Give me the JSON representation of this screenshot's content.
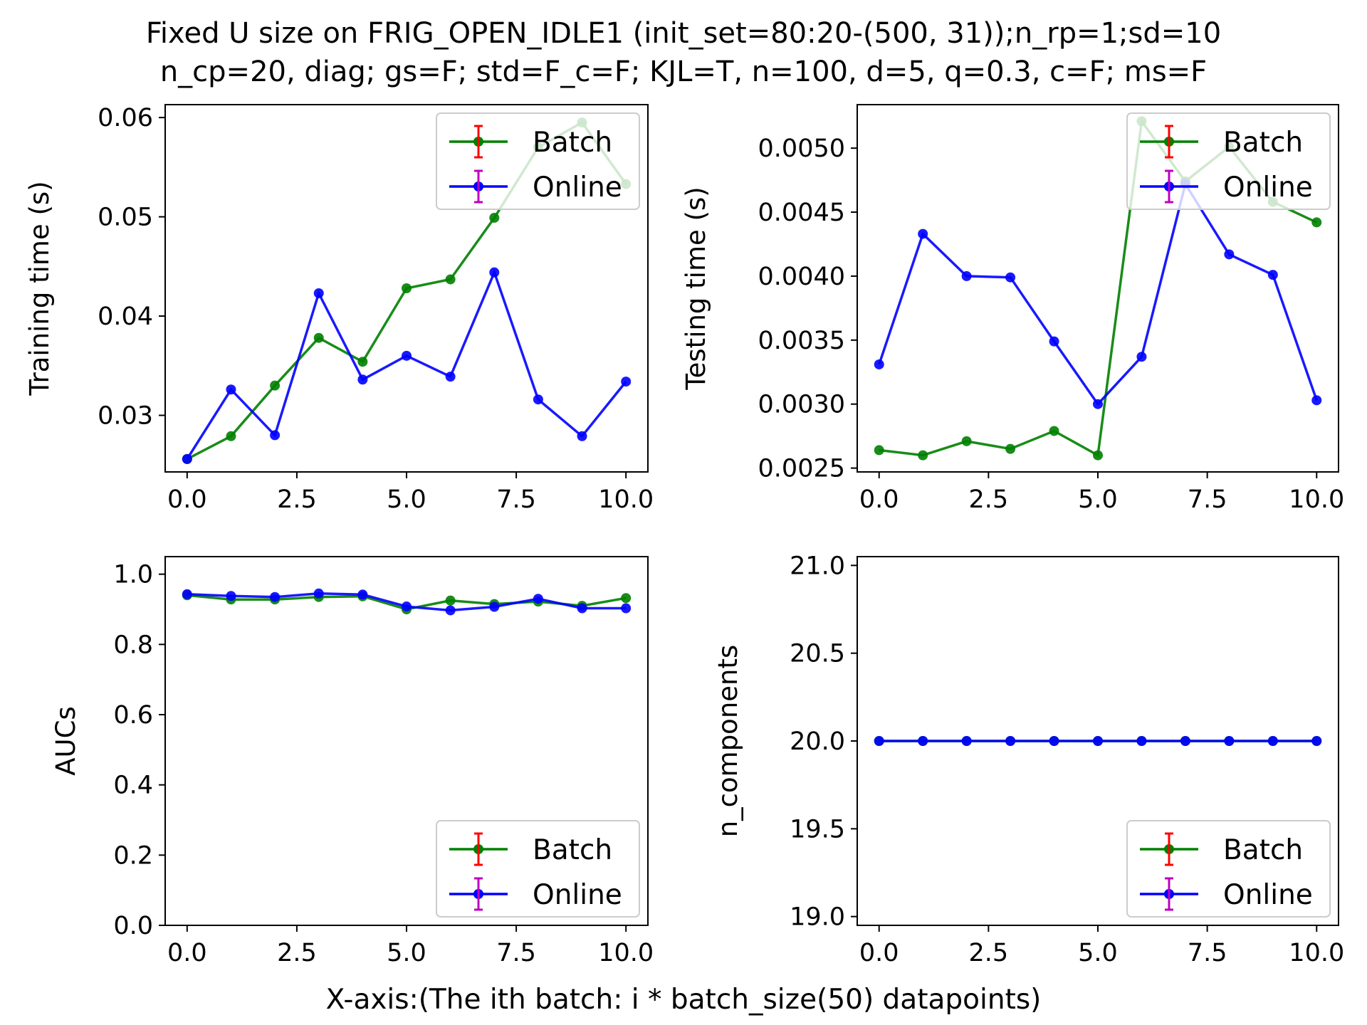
{
  "figure": {
    "title_line1": "Fixed U size on FRIG_OPEN_IDLE1 (init_set=80:20-(500, 31));n_rp=1;sd=10",
    "title_line2": "n_cp=20, diag; gs=F; std=F_c=F; KJL=T, n=100, d=5, q=0.3, c=F; ms=F",
    "xlabel": "X-axis:(The ith batch: i * batch_size(50) datapoints)"
  },
  "colors": {
    "batch_line": "#008000",
    "online_line": "#0000ff",
    "batch_errbar": "#ff0000",
    "online_errbar": "#bf00bf"
  },
  "chart_data": [
    {
      "type": "line",
      "ylabel": "Training time (s)",
      "x": [
        0,
        1,
        2,
        3,
        4,
        5,
        6,
        7,
        8,
        9,
        10
      ],
      "xlim": [
        -0.5,
        10.5
      ],
      "xticks": [
        0.0,
        2.5,
        5.0,
        7.5,
        10.0
      ],
      "xtick_labels": [
        "0.0",
        "2.5",
        "5.0",
        "7.5",
        "10.0"
      ],
      "ylim": [
        0.0243,
        0.0613
      ],
      "yticks": [
        0.03,
        0.04,
        0.05,
        0.06
      ],
      "ytick_labels": [
        "0.03",
        "0.04",
        "0.05",
        "0.06"
      ],
      "legend": "upper right",
      "series": [
        {
          "name": "Batch",
          "values": [
            0.0256,
            0.0279,
            0.033,
            0.0378,
            0.0354,
            0.0428,
            0.0437,
            0.0499,
            0.057,
            0.0595,
            0.0533
          ]
        },
        {
          "name": "Online",
          "values": [
            0.0256,
            0.0326,
            0.028,
            0.0423,
            0.0336,
            0.036,
            0.0339,
            0.0444,
            0.0316,
            0.0279,
            0.0334
          ]
        }
      ]
    },
    {
      "type": "line",
      "ylabel": "Testing time (s)",
      "x": [
        0,
        1,
        2,
        3,
        4,
        5,
        6,
        7,
        8,
        9,
        10
      ],
      "xlim": [
        -0.5,
        10.5
      ],
      "xticks": [
        0.0,
        2.5,
        5.0,
        7.5,
        10.0
      ],
      "xtick_labels": [
        "0.0",
        "2.5",
        "5.0",
        "7.5",
        "10.0"
      ],
      "ylim": [
        0.00247,
        0.00534
      ],
      "yticks": [
        0.0025,
        0.003,
        0.0035,
        0.004,
        0.0045,
        0.005
      ],
      "ytick_labels": [
        "0.0025",
        "0.0030",
        "0.0035",
        "0.0040",
        "0.0045",
        "0.0050"
      ],
      "legend": "upper right",
      "series": [
        {
          "name": "Batch",
          "values": [
            0.00264,
            0.0026,
            0.00271,
            0.00265,
            0.00279,
            0.0026,
            0.00521,
            0.00474,
            0.00501,
            0.00458,
            0.00442
          ]
        },
        {
          "name": "Online",
          "values": [
            0.00331,
            0.00433,
            0.004,
            0.00399,
            0.00349,
            0.003,
            0.00337,
            0.00472,
            0.00417,
            0.00401,
            0.00303
          ]
        }
      ]
    },
    {
      "type": "line",
      "ylabel": "AUCs",
      "x": [
        0,
        1,
        2,
        3,
        4,
        5,
        6,
        7,
        8,
        9,
        10
      ],
      "xlim": [
        -0.5,
        10.5
      ],
      "xticks": [
        0.0,
        2.5,
        5.0,
        7.5,
        10.0
      ],
      "xtick_labels": [
        "0.0",
        "2.5",
        "5.0",
        "7.5",
        "10.0"
      ],
      "ylim": [
        0.0,
        1.05
      ],
      "yticks": [
        0.0,
        0.2,
        0.4,
        0.6,
        0.8,
        1.0
      ],
      "ytick_labels": [
        "0.0",
        "0.2",
        "0.4",
        "0.6",
        "0.8",
        "1.0"
      ],
      "legend": "lower right",
      "series": [
        {
          "name": "Batch",
          "values": [
            0.94,
            0.928,
            0.928,
            0.935,
            0.937,
            0.9,
            0.925,
            0.915,
            0.922,
            0.91,
            0.932
          ]
        },
        {
          "name": "Online",
          "values": [
            0.943,
            0.938,
            0.935,
            0.945,
            0.942,
            0.908,
            0.897,
            0.907,
            0.93,
            0.903,
            0.903
          ]
        }
      ]
    },
    {
      "type": "line",
      "ylabel": "n_components",
      "x": [
        0,
        1,
        2,
        3,
        4,
        5,
        6,
        7,
        8,
        9,
        10
      ],
      "xlim": [
        -0.5,
        10.5
      ],
      "xticks": [
        0.0,
        2.5,
        5.0,
        7.5,
        10.0
      ],
      "xtick_labels": [
        "0.0",
        "2.5",
        "5.0",
        "7.5",
        "10.0"
      ],
      "ylim": [
        18.95,
        21.05
      ],
      "yticks": [
        19.0,
        19.5,
        20.0,
        20.5,
        21.0
      ],
      "ytick_labels": [
        "19.0",
        "19.5",
        "20.0",
        "20.5",
        "21.0"
      ],
      "legend": "lower right",
      "series": [
        {
          "name": "Batch",
          "values": [
            20,
            20,
            20,
            20,
            20,
            20,
            20,
            20,
            20,
            20,
            20
          ]
        },
        {
          "name": "Online",
          "values": [
            20,
            20,
            20,
            20,
            20,
            20,
            20,
            20,
            20,
            20,
            20
          ]
        }
      ]
    }
  ]
}
